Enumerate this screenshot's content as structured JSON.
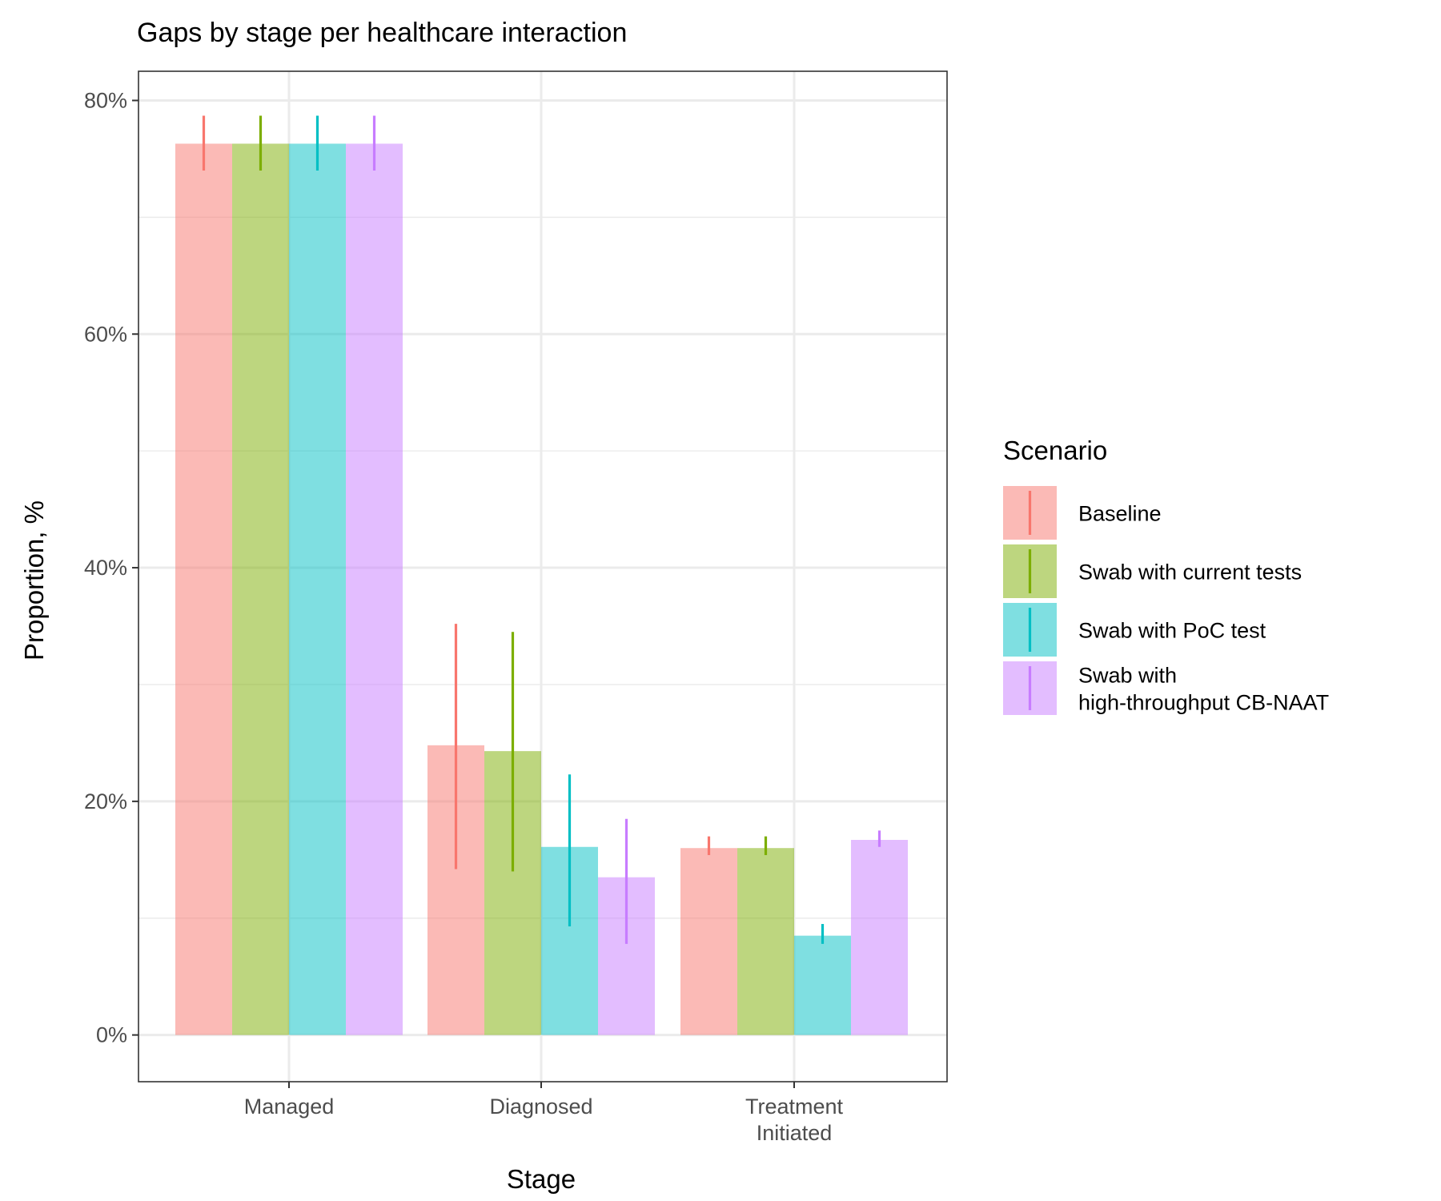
{
  "chart_data": {
    "type": "bar",
    "title": "Gaps by stage per healthcare interaction",
    "xlabel": "Stage",
    "ylabel": "Proportion, %",
    "categories": [
      [
        "Managed"
      ],
      [
        "Diagnosed"
      ],
      [
        "Treatment",
        "Initiated"
      ]
    ],
    "y_ticks": [
      {
        "value": 0,
        "label": "0%"
      },
      {
        "value": 20,
        "label": "20%"
      },
      {
        "value": 40,
        "label": "40%"
      },
      {
        "value": 60,
        "label": "60%"
      },
      {
        "value": 80,
        "label": "80%"
      }
    ],
    "ylim": [
      -4,
      82.5
    ],
    "grid": true,
    "legend": {
      "title": "Scenario",
      "position": "right",
      "entries": [
        [
          "Baseline"
        ],
        [
          "Swab with current tests"
        ],
        [
          "Swab with PoC test"
        ],
        [
          "Swab with",
          "high-throughput CB-NAAT"
        ]
      ]
    },
    "series": [
      {
        "name": "Baseline",
        "color": "#F8766D",
        "values": [
          76.3,
          24.8,
          16.0
        ],
        "error_low": [
          74.0,
          14.2,
          15.4
        ],
        "error_high": [
          78.7,
          35.2,
          17.0
        ]
      },
      {
        "name": "Swab with current tests",
        "color": "#7CAE00",
        "values": [
          76.3,
          24.3,
          16.0
        ],
        "error_low": [
          74.0,
          14.0,
          15.4
        ],
        "error_high": [
          78.7,
          34.5,
          17.0
        ]
      },
      {
        "name": "Swab with PoC test",
        "color": "#00BFC4",
        "values": [
          76.3,
          16.1,
          8.5
        ],
        "error_low": [
          74.0,
          9.3,
          7.8
        ],
        "error_high": [
          78.7,
          22.3,
          9.5
        ]
      },
      {
        "name": "Swab with high-throughput CB-NAAT",
        "color": "#C77CFF",
        "values": [
          76.3,
          13.5,
          16.7
        ],
        "error_low": [
          74.0,
          7.8,
          16.1
        ],
        "error_high": [
          78.7,
          18.5,
          17.5
        ]
      }
    ]
  }
}
